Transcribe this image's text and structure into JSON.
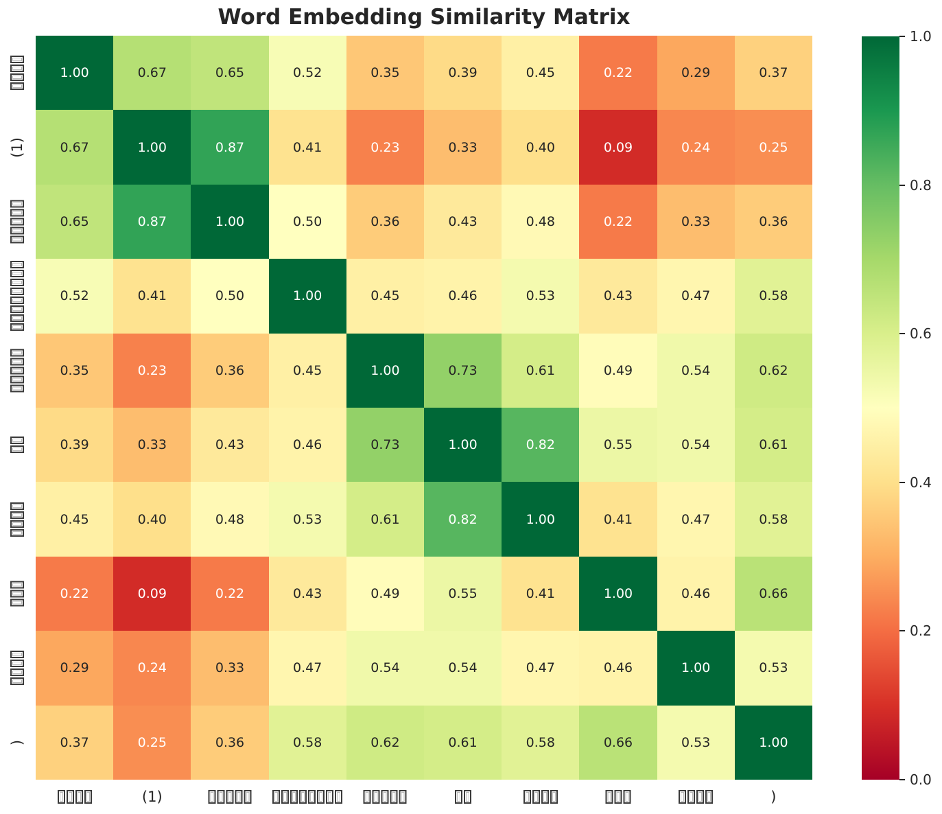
{
  "tofu_char": "□",
  "text_colors": {
    "dark": "#262626",
    "light": "#ffffff"
  },
  "chart_data": {
    "type": "heatmap",
    "title": "Word Embedding Similarity Matrix",
    "x_labels": [
      "□□□□",
      "(1)",
      "□□□□□",
      "□□□□□□□□",
      "□□□□□",
      "□□",
      "□□□□",
      "□□□",
      "□□□□",
      ")"
    ],
    "y_labels": [
      "□□□□",
      "(1)",
      "□□□□□",
      "□□□□□□□□",
      "□□□□□",
      "□□",
      "□□□□",
      "□□□",
      "□□□□",
      ")"
    ],
    "matrix": [
      [
        1.0,
        0.67,
        0.65,
        0.52,
        0.35,
        0.39,
        0.45,
        0.22,
        0.29,
        0.37
      ],
      [
        0.67,
        1.0,
        0.87,
        0.41,
        0.23,
        0.33,
        0.4,
        0.09,
        0.24,
        0.25
      ],
      [
        0.65,
        0.87,
        1.0,
        0.5,
        0.36,
        0.43,
        0.48,
        0.22,
        0.33,
        0.36
      ],
      [
        0.52,
        0.41,
        0.5,
        1.0,
        0.45,
        0.46,
        0.53,
        0.43,
        0.47,
        0.58
      ],
      [
        0.35,
        0.23,
        0.36,
        0.45,
        1.0,
        0.73,
        0.61,
        0.49,
        0.54,
        0.62
      ],
      [
        0.39,
        0.33,
        0.43,
        0.46,
        0.73,
        1.0,
        0.82,
        0.55,
        0.54,
        0.61
      ],
      [
        0.45,
        0.4,
        0.48,
        0.53,
        0.61,
        0.82,
        1.0,
        0.41,
        0.47,
        0.58
      ],
      [
        0.22,
        0.09,
        0.22,
        0.43,
        0.49,
        0.55,
        0.41,
        1.0,
        0.46,
        0.66
      ],
      [
        0.29,
        0.24,
        0.33,
        0.47,
        0.54,
        0.54,
        0.47,
        0.46,
        1.0,
        0.53
      ],
      [
        0.37,
        0.25,
        0.36,
        0.58,
        0.62,
        0.61,
        0.58,
        0.66,
        0.53,
        1.0
      ]
    ],
    "vmin": 0,
    "vmax": 1,
    "annotation_decimals": 2,
    "grid": false,
    "legend_position": "colorbar-right",
    "colormap": {
      "name": "RdYlGn",
      "anchors": [
        "#a50026",
        "#d73027",
        "#f46d43",
        "#fdae61",
        "#fee08b",
        "#ffffbf",
        "#d9ef8b",
        "#a6d96a",
        "#66bd63",
        "#1a9850",
        "#006837"
      ]
    },
    "colorbar": {
      "ticks": [
        {
          "value": 1.0,
          "label": "1.0"
        },
        {
          "value": 0.8,
          "label": "0.8"
        },
        {
          "value": 0.6,
          "label": "0.6"
        },
        {
          "value": 0.4,
          "label": "0.4"
        },
        {
          "value": 0.2,
          "label": "0.2"
        },
        {
          "value": 0.0,
          "label": "0.0"
        }
      ]
    }
  }
}
